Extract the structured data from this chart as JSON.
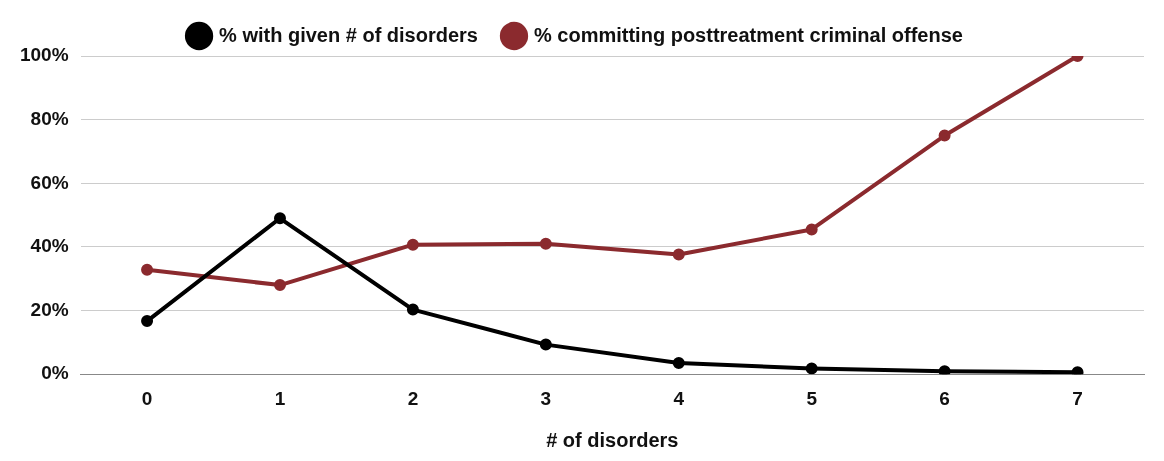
{
  "chart_data": {
    "type": "line",
    "xlabel": "# of disorders",
    "categories": [
      "0",
      "1",
      "2",
      "3",
      "4",
      "5",
      "6",
      "7"
    ],
    "series": [
      {
        "name": "% with given # of disorders",
        "color": "#000000",
        "values": [
          16.7,
          49,
          20.3,
          9.3,
          3.5,
          1.8,
          0.9,
          0.6
        ]
      },
      {
        "name": "% committing posttreatment criminal offense",
        "color": "#8b2a2e",
        "values": [
          32.8,
          28,
          40.7,
          41,
          37.6,
          45.5,
          75,
          100
        ]
      }
    ],
    "ylim": [
      0,
      100
    ],
    "yticks": [
      {
        "value": 0,
        "label": "0%"
      },
      {
        "value": 20,
        "label": "20%"
      },
      {
        "value": 40,
        "label": "40%"
      },
      {
        "value": 60,
        "label": "60%"
      },
      {
        "value": 80,
        "label": "80%"
      },
      {
        "value": 100,
        "label": "100%"
      }
    ],
    "grid": "y",
    "legend": "top",
    "marker": "circle",
    "line_style": "solid"
  }
}
